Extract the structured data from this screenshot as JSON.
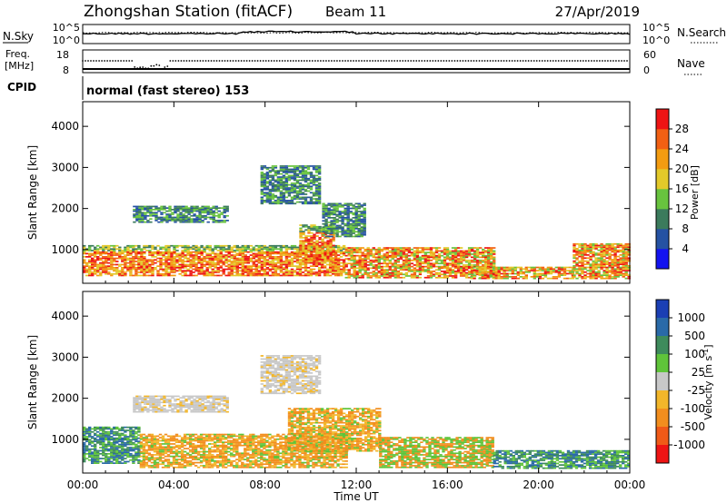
{
  "header": {
    "station": "Zhongshan Station (fitACF)",
    "beam": "Beam 11",
    "date": "27/Apr/2019"
  },
  "noise_panel": {
    "left_label": "N.Sky",
    "left_ticks": [
      "10^5",
      "10^0"
    ],
    "right_label": "N.Search",
    "right_ticks": [
      "10^5",
      "10^0"
    ]
  },
  "freq_panel": {
    "left_label_line1": "Freq.",
    "left_label_line2": "[MHz]",
    "left_ticks": [
      "18",
      "8"
    ],
    "right_label": "Nave",
    "right_ticks": [
      "60",
      "0"
    ]
  },
  "cpid": {
    "label": "CPID",
    "value": "normal (fast stereo) 153"
  },
  "chart_data": [
    {
      "type": "heatmap",
      "title": "",
      "xlabel": "Time UT",
      "ylabel": "Slant Range [km]",
      "x_ticks": [
        "00:00",
        "04:00",
        "08:00",
        "12:00",
        "16:00",
        "20:00",
        "00:00"
      ],
      "y_ticks": [
        1000,
        2000,
        3000,
        4000
      ],
      "xlim_hours": [
        0,
        24
      ],
      "ylim_km": [
        180,
        4600
      ],
      "colorbar": {
        "label": "Power [dB]",
        "ticks": [
          4,
          8,
          12,
          16,
          20,
          24,
          28
        ],
        "colors": [
          "#1313f0",
          "#2552a3",
          "#3b7b5c",
          "#68c33e",
          "#e3c92a",
          "#f39c11",
          "#f26013",
          "#ee1414"
        ]
      },
      "echo_regions": [
        {
          "t0": 0.0,
          "t1": 11.5,
          "r0": 350,
          "r1": 1100,
          "level": "high"
        },
        {
          "t0": 9.5,
          "t1": 11.0,
          "r0": 700,
          "r1": 1600,
          "level": "high"
        },
        {
          "t0": 11.5,
          "t1": 18.0,
          "r0": 300,
          "r1": 1050,
          "level": "mid"
        },
        {
          "t0": 17.0,
          "t1": 21.5,
          "r0": 280,
          "r1": 550,
          "level": "mid"
        },
        {
          "t0": 21.5,
          "t1": 24.0,
          "r0": 280,
          "r1": 1150,
          "level": "mid"
        },
        {
          "t0": 2.2,
          "t1": 6.3,
          "r0": 1650,
          "r1": 2050,
          "level": "low"
        },
        {
          "t0": 7.8,
          "t1": 10.4,
          "r0": 2100,
          "r1": 3050,
          "level": "low"
        },
        {
          "t0": 10.5,
          "t1": 12.3,
          "r0": 1300,
          "r1": 2100,
          "level": "low"
        }
      ]
    },
    {
      "type": "heatmap",
      "title": "",
      "xlabel": "Time UT",
      "ylabel": "Slant Range [km]",
      "x_ticks": [
        "00:00",
        "04:00",
        "08:00",
        "12:00",
        "16:00",
        "20:00",
        "00:00"
      ],
      "y_ticks": [
        1000,
        2000,
        3000,
        4000
      ],
      "xlim_hours": [
        0,
        24
      ],
      "ylim_km": [
        180,
        4600
      ],
      "colorbar": {
        "label": "Velocity [m s-1]",
        "ticks": [
          1000,
          500,
          100,
          25,
          -25,
          -100,
          -500,
          -1000
        ],
        "colors": [
          "#1b3fb4",
          "#2a6aa8",
          "#3e8b5c",
          "#5fc43a",
          "#c8c8c8",
          "#f2b62a",
          "#f28e1e",
          "#f05a18",
          "#ee1414"
        ]
      },
      "echo_regions": [
        {
          "t0": 0.0,
          "t1": 2.5,
          "r0": 400,
          "r1": 1300,
          "level": "positive"
        },
        {
          "t0": 2.5,
          "t1": 11.5,
          "r0": 300,
          "r1": 1100,
          "level": "negative"
        },
        {
          "t0": 9.0,
          "t1": 13.0,
          "r0": 700,
          "r1": 1750,
          "level": "negative"
        },
        {
          "t0": 13.0,
          "t1": 18.0,
          "r0": 300,
          "r1": 1050,
          "level": "mixed"
        },
        {
          "t0": 18.0,
          "t1": 24.0,
          "r0": 280,
          "r1": 700,
          "level": "positive"
        },
        {
          "t0": 2.2,
          "t1": 6.3,
          "r0": 1650,
          "r1": 2050,
          "level": "near-zero"
        },
        {
          "t0": 7.8,
          "t1": 10.4,
          "r0": 2100,
          "r1": 3050,
          "level": "near-zero"
        }
      ]
    }
  ]
}
